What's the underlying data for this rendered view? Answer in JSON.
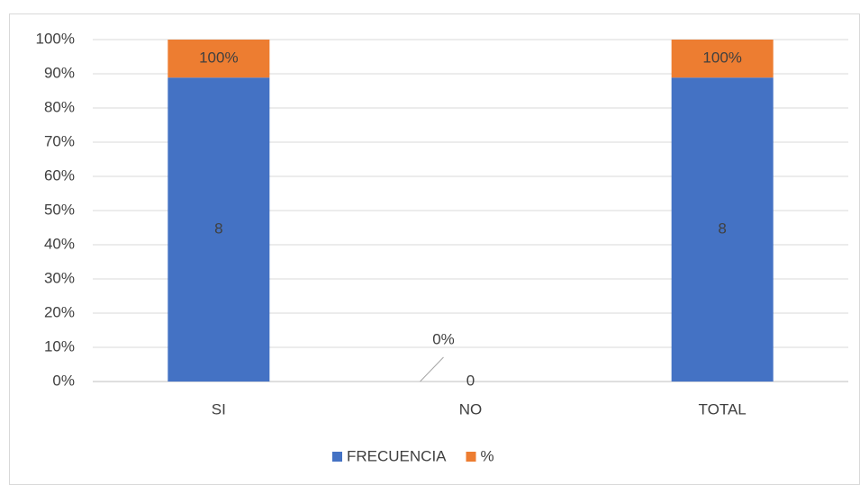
{
  "chart_data": {
    "type": "bar",
    "stacking": "percent",
    "categories": [
      "SI",
      "NO",
      "TOTAL"
    ],
    "series": [
      {
        "name": "FRECUENCIA",
        "color": "#4472c4",
        "values": [
          8,
          0,
          8
        ]
      },
      {
        "name": "%",
        "color": "#ed7d31",
        "values": [
          1,
          0,
          1
        ],
        "value_labels": [
          "100%",
          "0%",
          "100%"
        ]
      }
    ],
    "ylim": [
      0,
      100
    ],
    "yticks": [
      {
        "value": 0,
        "label": "0%"
      },
      {
        "value": 10,
        "label": "10%"
      },
      {
        "value": 20,
        "label": "20%"
      },
      {
        "value": 30,
        "label": "30%"
      },
      {
        "value": 40,
        "label": "40%"
      },
      {
        "value": 50,
        "label": "50%"
      },
      {
        "value": 60,
        "label": "60%"
      },
      {
        "value": 70,
        "label": "70%"
      },
      {
        "value": 80,
        "label": "80%"
      },
      {
        "value": 90,
        "label": "90%"
      },
      {
        "value": 100,
        "label": "100%"
      }
    ],
    "grid": true,
    "legend": "bottom"
  }
}
